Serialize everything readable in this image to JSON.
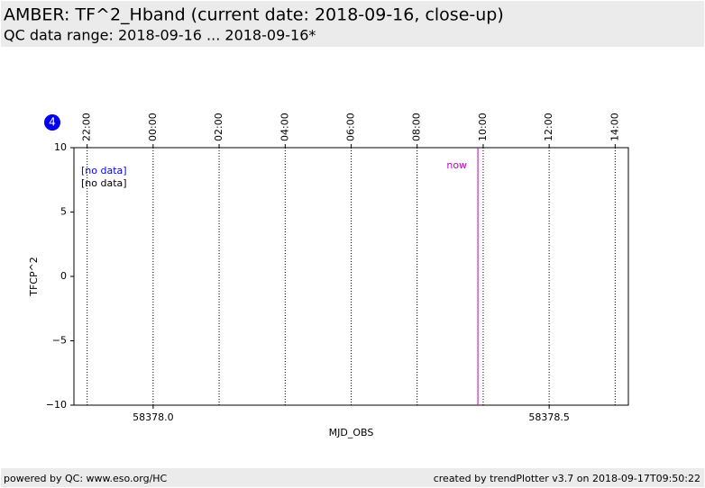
{
  "header": {
    "title": "AMBER: TF^2_Hband (current date: 2018-09-16, close-up)",
    "subtitle": "QC data range: 2018-09-16 ... 2018-09-16*"
  },
  "badge": "4",
  "footer": {
    "left": "powered by QC: www.eso.org/HC",
    "right": "created by trendPlotter v3.7 on 2018-09-17T09:50:22"
  },
  "chart_data": {
    "type": "line",
    "x_label": "MJD_OBS",
    "y_label": "TFCP^2",
    "xlim": [
      58377.9,
      58378.6
    ],
    "ylim": [
      -10,
      10
    ],
    "xticks": [
      {
        "value": 58378.0,
        "label": "58378.0"
      },
      58378.5
    ],
    "yticks": [
      {
        "value": -10,
        "label": "−10"
      },
      {
        "value": -5,
        "label": "−5"
      },
      0,
      5,
      10
    ],
    "x2ticks": [
      {
        "value": 58377.9167,
        "label": "22:00"
      },
      {
        "value": 58378.0,
        "label": "00:00"
      },
      {
        "value": 58378.0833,
        "label": "02:00"
      },
      {
        "value": 58378.1667,
        "label": "04:00"
      },
      {
        "value": 58378.25,
        "label": "06:00"
      },
      {
        "value": 58378.3333,
        "label": "08:00"
      },
      {
        "value": 58378.4167,
        "label": "10:00"
      },
      {
        "value": 58378.5,
        "label": "12:00"
      },
      {
        "value": 58378.5833,
        "label": "14:00"
      }
    ],
    "now": {
      "value": 58378.41,
      "label": "now",
      "color": "#c000c0"
    },
    "annotations": [
      {
        "text": "[no data]",
        "color": "#0000ff"
      },
      {
        "text": "[no data]",
        "color": "#000000"
      }
    ]
  }
}
